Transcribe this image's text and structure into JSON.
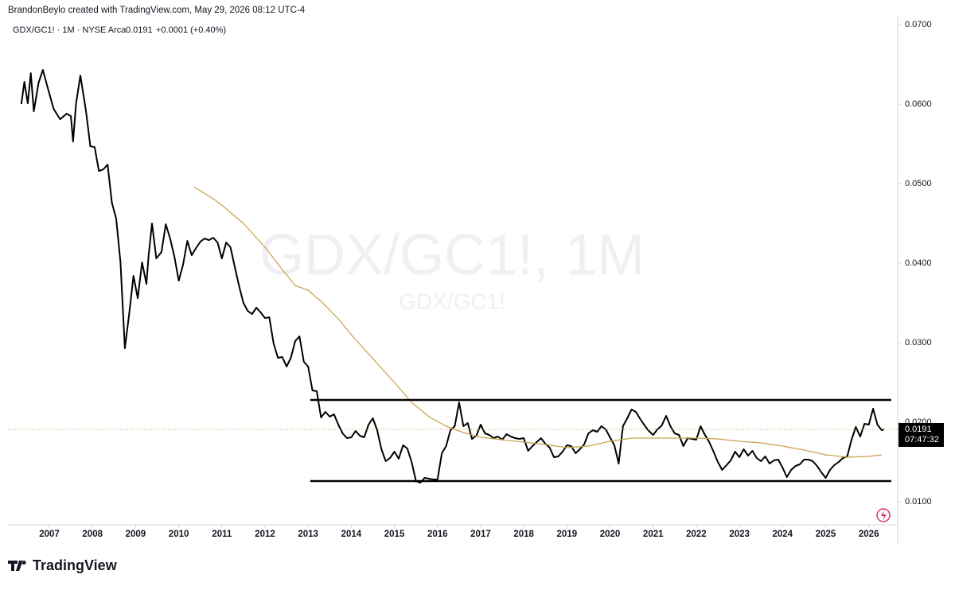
{
  "header": {
    "attribution": "BrandonBeylo created with TradingView.com, May 29, 2026 08:12 UTC-4",
    "symbol": "GDX/GC1! · 1M · NYSE Arca",
    "last": "0.0191",
    "change": "+0.0001 (+0.40%)"
  },
  "watermark": {
    "main": "GDX/GC1!, 1M",
    "sub": "GDX/GC1!"
  },
  "footer": {
    "logo": "TradingView"
  },
  "chart_data": {
    "type": "line",
    "xlim": [
      2006.04,
      2026.67
    ],
    "xticks": [
      2007,
      2008,
      2009,
      2010,
      2011,
      2012,
      2013,
      2014,
      2015,
      2016,
      2017,
      2018,
      2019,
      2020,
      2021,
      2022,
      2023,
      2024,
      2025,
      2026
    ],
    "ylim": [
      0.0071,
      0.0711
    ],
    "yticks": [
      {
        "value": 0.01,
        "label": "0.0100"
      },
      {
        "value": 0.02,
        "label": "0.0200"
      },
      {
        "value": 0.03,
        "label": "0.0300"
      },
      {
        "value": 0.04,
        "label": "0.0400"
      },
      {
        "value": 0.05,
        "label": "0.0500"
      },
      {
        "value": 0.06,
        "label": "0.0600"
      },
      {
        "value": 0.07,
        "label": "0.0700"
      }
    ],
    "series": [
      {
        "color": "#000000",
        "width": 2,
        "x": [
          2006.35,
          2006.42,
          2006.5,
          2006.57,
          2006.64,
          2006.75,
          2006.85,
          2006.95,
          2007.1,
          2007.25,
          2007.4,
          2007.5,
          2007.55,
          2007.62,
          2007.72,
          2007.85,
          2007.95,
          2008.05,
          2008.15,
          2008.25,
          2008.35,
          2008.45,
          2008.55,
          2008.65,
          2008.75,
          2008.85,
          2008.95,
          2009.05,
          2009.15,
          2009.25,
          2009.3,
          2009.38,
          2009.48,
          2009.6,
          2009.7,
          2009.8,
          2009.9,
          2010.0,
          2010.1,
          2010.2,
          2010.3,
          2010.4,
          2010.5,
          2010.6,
          2010.7,
          2010.8,
          2010.9,
          2011.0,
          2011.1,
          2011.2,
          2011.3,
          2011.4,
          2011.5,
          2011.6,
          2011.7,
          2011.8,
          2011.9,
          2012.0,
          2012.1,
          2012.2,
          2012.3,
          2012.4,
          2012.5,
          2012.6,
          2012.7,
          2012.8,
          2012.9,
          2013.0,
          2013.1,
          2013.2,
          2013.3,
          2013.4,
          2013.5,
          2013.6,
          2013.7,
          2013.8,
          2013.9,
          2014.0,
          2014.1,
          2014.2,
          2014.3,
          2014.4,
          2014.5,
          2014.6,
          2014.7,
          2014.8,
          2014.9,
          2015.0,
          2015.1,
          2015.2,
          2015.3,
          2015.4,
          2015.5,
          2015.6,
          2015.7,
          2015.8,
          2015.9,
          2016.0,
          2016.1,
          2016.2,
          2016.3,
          2016.4,
          2016.5,
          2016.6,
          2016.7,
          2016.8,
          2016.9,
          2017.0,
          2017.1,
          2017.2,
          2017.3,
          2017.4,
          2017.5,
          2017.6,
          2017.7,
          2017.8,
          2017.9,
          2018.0,
          2018.1,
          2018.2,
          2018.3,
          2018.4,
          2018.5,
          2018.6,
          2018.7,
          2018.8,
          2018.9,
          2019.0,
          2019.1,
          2019.2,
          2019.3,
          2019.4,
          2019.5,
          2019.6,
          2019.7,
          2019.8,
          2019.9,
          2020.0,
          2020.1,
          2020.2,
          2020.3,
          2020.4,
          2020.5,
          2020.6,
          2020.7,
          2020.8,
          2020.9,
          2021.0,
          2021.1,
          2021.2,
          2021.3,
          2021.4,
          2021.5,
          2021.6,
          2021.7,
          2021.8,
          2021.9,
          2022.0,
          2022.1,
          2022.2,
          2022.3,
          2022.4,
          2022.5,
          2022.6,
          2022.7,
          2022.8,
          2022.9,
          2023.0,
          2023.1,
          2023.2,
          2023.3,
          2023.4,
          2023.5,
          2023.6,
          2023.7,
          2023.8,
          2023.9,
          2024.0,
          2024.1,
          2024.2,
          2024.3,
          2024.4,
          2024.5,
          2024.6,
          2024.7,
          2024.8,
          2024.9,
          2025.0,
          2025.1,
          2025.2,
          2025.3,
          2025.4,
          2025.5,
          2025.6,
          2025.7,
          2025.8,
          2025.9,
          2026.0,
          2026.1,
          2026.2,
          2026.3,
          2026.35
        ],
        "values": [
          0.06,
          0.0628,
          0.0601,
          0.0639,
          0.0591,
          0.0627,
          0.0643,
          0.0623,
          0.0594,
          0.0581,
          0.0588,
          0.0585,
          0.0553,
          0.0601,
          0.0636,
          0.0591,
          0.0547,
          0.0546,
          0.0516,
          0.0518,
          0.0524,
          0.0476,
          0.0456,
          0.0401,
          0.0293,
          0.0336,
          0.0384,
          0.0356,
          0.0401,
          0.0374,
          0.0409,
          0.045,
          0.0406,
          0.0414,
          0.0449,
          0.0431,
          0.0408,
          0.0378,
          0.0398,
          0.0428,
          0.041,
          0.0419,
          0.0427,
          0.0431,
          0.0429,
          0.0432,
          0.0426,
          0.0406,
          0.0426,
          0.042,
          0.0395,
          0.0371,
          0.035,
          0.034,
          0.0336,
          0.0344,
          0.0338,
          0.0331,
          0.0332,
          0.0299,
          0.0281,
          0.0282,
          0.027,
          0.0281,
          0.0302,
          0.0308,
          0.0276,
          0.027,
          0.024,
          0.0239,
          0.0206,
          0.0213,
          0.0207,
          0.021,
          0.0197,
          0.0186,
          0.018,
          0.0181,
          0.0189,
          0.0183,
          0.0181,
          0.0197,
          0.0205,
          0.019,
          0.0166,
          0.0151,
          0.0155,
          0.0163,
          0.0154,
          0.0171,
          0.0167,
          0.015,
          0.0126,
          0.0124,
          0.013,
          0.0129,
          0.0128,
          0.0128,
          0.0161,
          0.017,
          0.019,
          0.0195,
          0.0225,
          0.0195,
          0.0199,
          0.0179,
          0.0183,
          0.0197,
          0.0186,
          0.0184,
          0.018,
          0.0182,
          0.0178,
          0.0185,
          0.0182,
          0.018,
          0.0179,
          0.018,
          0.0164,
          0.017,
          0.0175,
          0.018,
          0.0173,
          0.0168,
          0.0156,
          0.0157,
          0.0163,
          0.0171,
          0.017,
          0.0161,
          0.0166,
          0.0172,
          0.0186,
          0.019,
          0.0188,
          0.0195,
          0.0191,
          0.0181,
          0.0171,
          0.0148,
          0.0195,
          0.0205,
          0.0216,
          0.0213,
          0.0204,
          0.0196,
          0.0189,
          0.0184,
          0.0191,
          0.0196,
          0.0208,
          0.0195,
          0.0186,
          0.0184,
          0.017,
          0.018,
          0.0179,
          0.0178,
          0.0195,
          0.0184,
          0.0175,
          0.0163,
          0.015,
          0.014,
          0.0146,
          0.0152,
          0.0163,
          0.0156,
          0.0166,
          0.0158,
          0.0164,
          0.0155,
          0.0151,
          0.0157,
          0.0148,
          0.0152,
          0.0153,
          0.0143,
          0.0131,
          0.014,
          0.0145,
          0.0147,
          0.0153,
          0.0153,
          0.0151,
          0.0145,
          0.0137,
          0.013,
          0.014,
          0.0146,
          0.015,
          0.0155,
          0.0157,
          0.0178,
          0.0194,
          0.0182,
          0.0198,
          0.0197,
          0.0217,
          0.0197,
          0.019,
          0.0191
        ]
      },
      {
        "color": "#c9a04a",
        "width": 1.2,
        "x": [
          2010.35,
          2010.8,
          2011.0,
          2011.5,
          2012.0,
          2012.4,
          2012.7,
          2013.0,
          2013.3,
          2013.7,
          2014.0,
          2014.5,
          2015.0,
          2015.4,
          2015.8,
          2016.2,
          2016.6,
          2017.0,
          2017.5,
          2018.0,
          2018.5,
          2019.0,
          2019.5,
          2020.0,
          2020.5,
          2021.0,
          2021.5,
          2022.0,
          2022.5,
          2023.0,
          2023.5,
          2024.0,
          2024.5,
          2025.0,
          2025.5,
          2026.0,
          2026.3
        ],
        "values": [
          0.0496,
          0.0481,
          0.0473,
          0.045,
          0.042,
          0.0392,
          0.0372,
          0.0366,
          0.0352,
          0.033,
          0.031,
          0.028,
          0.025,
          0.0225,
          0.0207,
          0.0195,
          0.0187,
          0.0181,
          0.0178,
          0.0175,
          0.0172,
          0.0168,
          0.017,
          0.0176,
          0.018,
          0.018,
          0.018,
          0.018,
          0.0179,
          0.0176,
          0.0174,
          0.017,
          0.0165,
          0.0159,
          0.0156,
          0.0157,
          0.0159
        ]
      }
    ],
    "levels": [
      {
        "value": 0.0228,
        "x": [
          2013.05,
          2026.52
        ]
      },
      {
        "value": 0.0126,
        "x": [
          2013.05,
          2026.52
        ]
      }
    ],
    "price_tag": {
      "value": 0.0191,
      "label": "0.0191",
      "countdown": "07:47:32",
      "color": "#c9a04a"
    }
  }
}
